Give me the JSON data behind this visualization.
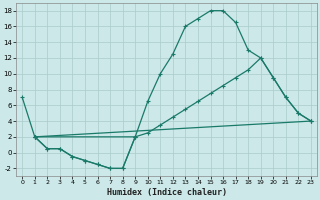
{
  "background_color": "#cce8e8",
  "grid_color": "#aacccc",
  "line_color": "#1a7a6a",
  "xlabel": "Humidex (Indice chaleur)",
  "xlim": [
    -0.5,
    23.5
  ],
  "ylim": [
    -3,
    19
  ],
  "xticks": [
    0,
    1,
    2,
    3,
    4,
    5,
    6,
    7,
    8,
    9,
    10,
    11,
    12,
    13,
    14,
    15,
    16,
    17,
    18,
    19,
    20,
    21,
    22,
    23
  ],
  "yticks": [
    -2,
    0,
    2,
    4,
    6,
    8,
    10,
    12,
    14,
    16,
    18
  ],
  "line1_x": [
    0,
    1
  ],
  "line1_y": [
    7,
    2
  ],
  "line2_x": [
    1,
    2,
    3,
    4,
    5,
    6,
    7,
    8,
    9
  ],
  "line2_y": [
    2,
    0.5,
    0.5,
    -0.5,
    -1.0,
    -1.5,
    -2.0,
    -2.0,
    2
  ],
  "line3_x": [
    1,
    2,
    3,
    4,
    5,
    6,
    7,
    8,
    9,
    10,
    11,
    12,
    13,
    14,
    15,
    16,
    17,
    18,
    19,
    20,
    21,
    22,
    23
  ],
  "line3_y": [
    2,
    0.5,
    0.5,
    -0.5,
    -1.0,
    -1.5,
    -2.0,
    -2.0,
    2,
    6.5,
    10,
    12.5,
    16,
    17,
    18,
    18,
    16.5,
    13,
    12,
    9.5,
    7,
    5,
    4
  ],
  "line4_x": [
    1,
    9,
    10,
    11,
    12,
    13,
    14,
    15,
    16,
    17,
    18,
    19,
    20,
    21,
    22,
    23
  ],
  "line4_y": [
    2,
    2,
    2.5,
    3.5,
    4.5,
    5.5,
    6.5,
    7.5,
    8.5,
    9.5,
    10.5,
    12,
    9.5,
    7,
    5,
    4
  ],
  "line5_x": [
    1,
    23
  ],
  "line5_y": [
    2,
    4
  ]
}
